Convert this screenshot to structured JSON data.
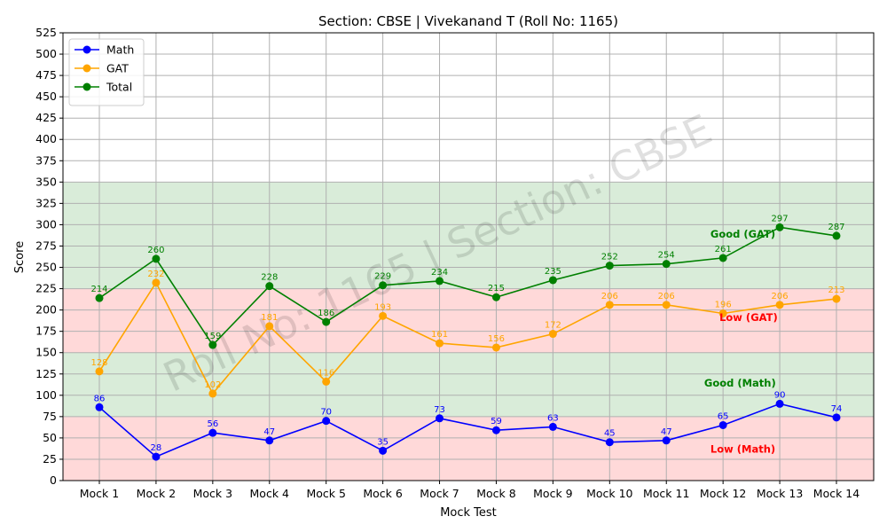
{
  "chart_data": {
    "type": "line",
    "title": "Section: CBSE | Vivekanand T (Roll No: 1165)",
    "xlabel": "Mock Test",
    "ylabel": "Score",
    "ylim": [
      0,
      525
    ],
    "ytick_step": 25,
    "grid": true,
    "legend_position": "top-left",
    "watermark": "Roll No: 1165 | Section: CBSE",
    "categories": [
      "Mock 1",
      "Mock 2",
      "Mock 3",
      "Mock 4",
      "Mock 5",
      "Mock 6",
      "Mock 7",
      "Mock 8",
      "Mock 9",
      "Mock 10",
      "Mock 11",
      "Mock 12",
      "Mock 13",
      "Mock 14"
    ],
    "series": [
      {
        "name": "Math",
        "color": "#0000ff",
        "values": [
          86,
          28,
          56,
          47,
          70,
          35,
          73,
          59,
          63,
          45,
          47,
          65,
          90,
          74
        ]
      },
      {
        "name": "GAT",
        "color": "#ffa500",
        "values": [
          128,
          232,
          102,
          181,
          116,
          193,
          161,
          156,
          172,
          206,
          206,
          196,
          206,
          213
        ]
      },
      {
        "name": "Total",
        "color": "#008000",
        "values": [
          214,
          260,
          159,
          228,
          186,
          229,
          234,
          215,
          235,
          252,
          254,
          261,
          297,
          287
        ]
      }
    ],
    "bands": [
      {
        "from": 0,
        "to": 75,
        "color": "#ffd9d9"
      },
      {
        "from": 75,
        "to": 150,
        "color": "#d9ecd9"
      },
      {
        "from": 150,
        "to": 225,
        "color": "#ffd9d9"
      },
      {
        "from": 225,
        "to": 350,
        "color": "#d9ecd9"
      }
    ],
    "annotations": [
      {
        "text": "Good (GAT)",
        "x": 11.35,
        "y": 285,
        "color": "#008000"
      },
      {
        "text": "Low (GAT)",
        "x": 11.45,
        "y": 187,
        "color": "#ff0000"
      },
      {
        "text": "Good (Math)",
        "x": 11.3,
        "y": 110,
        "color": "#008000"
      },
      {
        "text": "Low (Math)",
        "x": 11.35,
        "y": 33,
        "color": "#ff0000"
      }
    ]
  }
}
